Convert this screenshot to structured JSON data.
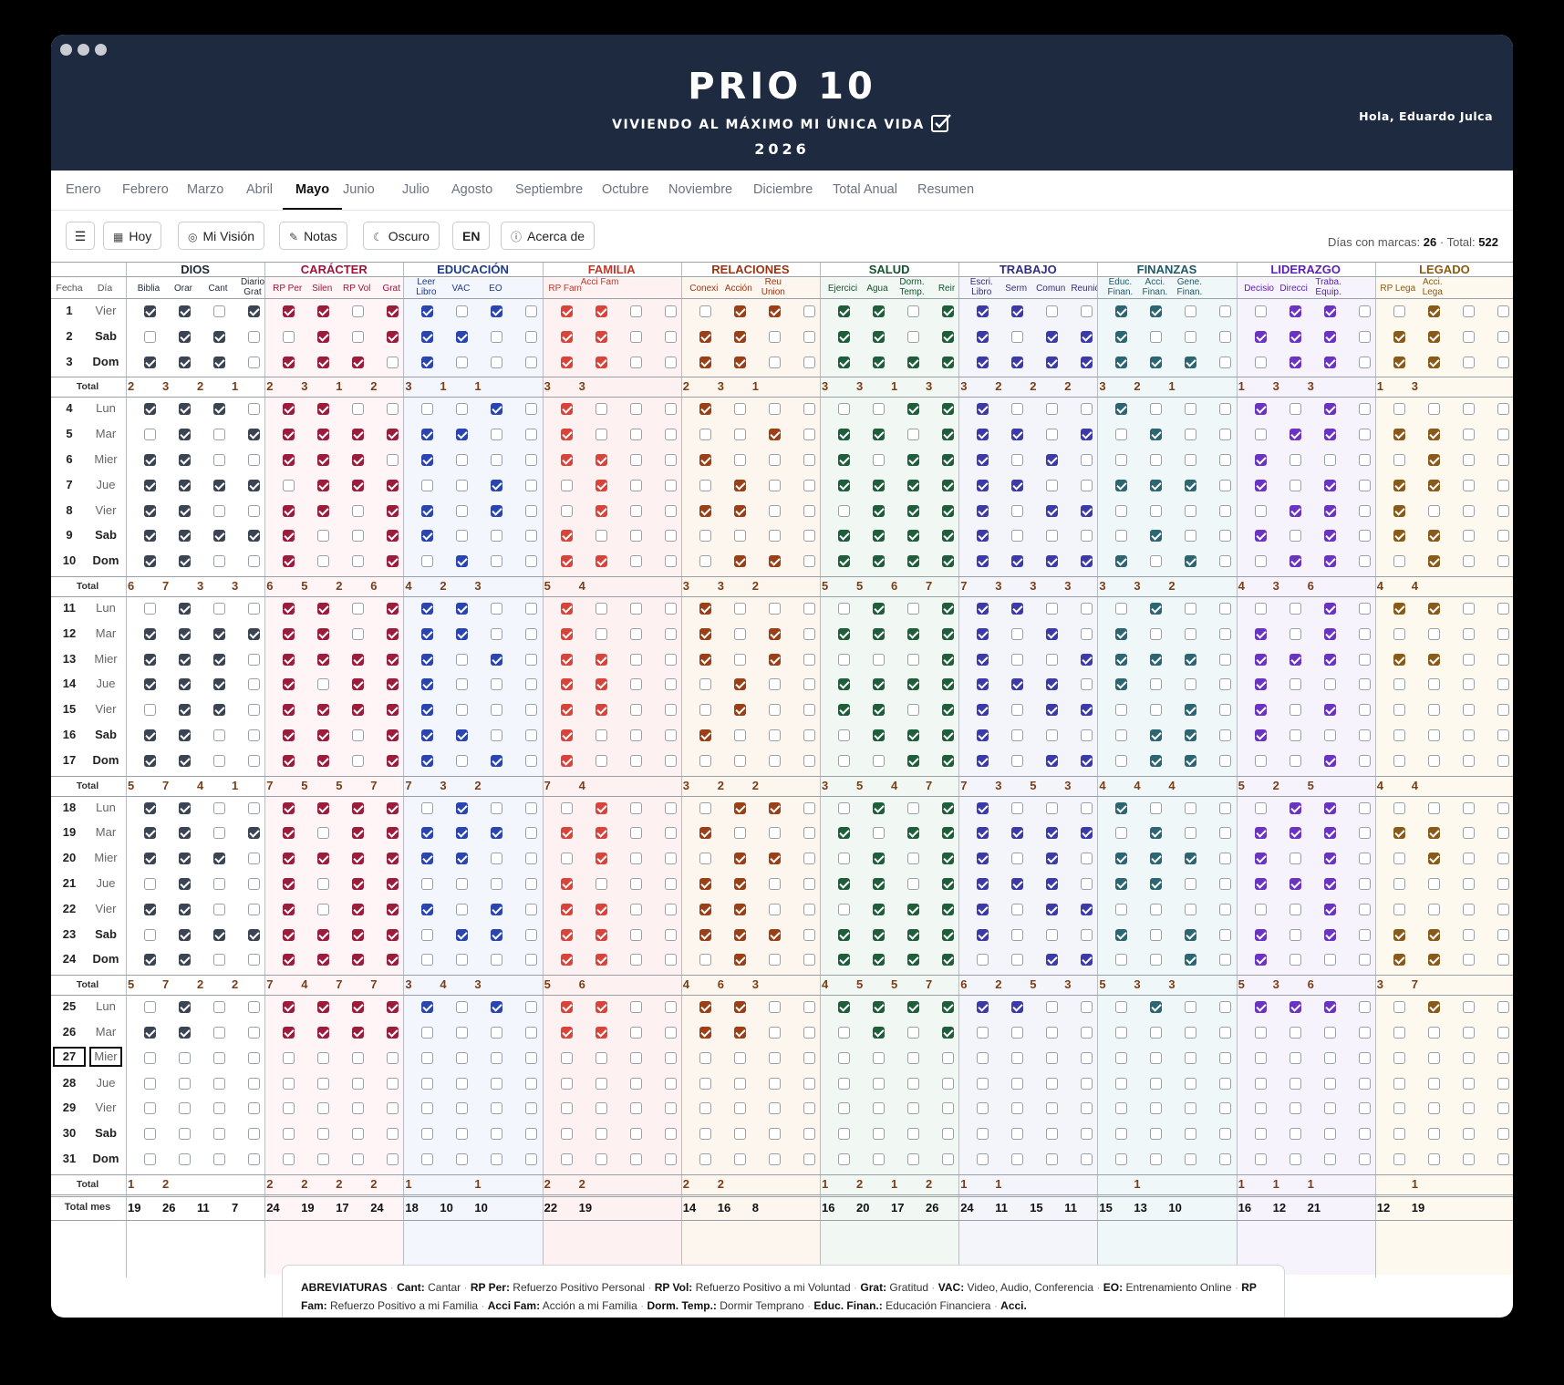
{
  "app": {
    "title": "PRIO 10",
    "subtitle": "VIVIENDO AL MÁXIMO MI ÚNICA VIDA",
    "year": "2026",
    "greeting": "Hola, Eduardo Julca"
  },
  "tabs": [
    "Enero",
    "Febrero",
    "Marzo",
    "Abril",
    "Mayo",
    "Junio",
    "Julio",
    "Agosto",
    "Septiembre",
    "Octubre",
    "Noviembre",
    "Diciembre",
    "Total Anual",
    "Resumen"
  ],
  "active_tab": "Mayo",
  "toolbar": {
    "menu_icon": "hamburger-icon",
    "today": "Hoy",
    "vision": "Mi Visión",
    "notes": "Notas",
    "dark": "Oscuro",
    "lang": "EN",
    "about": "Acerca de"
  },
  "stats": {
    "days_label": "Días con marcas:",
    "days": "26",
    "sep": "·",
    "total_label": "Total:",
    "total": "522"
  },
  "headers": {
    "fecha": "Fecha",
    "dia": "Día",
    "total": "Total",
    "month_total": "Total mes"
  },
  "groups": [
    {
      "name": "DIOS",
      "color": "#1f2937",
      "tint": "#ffffff",
      "cols": [
        "Biblia",
        "Orar",
        "Cant",
        "Diario Grat"
      ]
    },
    {
      "name": "CARÁCTER",
      "color": "#9f1239",
      "tint": "#fff5f7",
      "cols": [
        "RP Per",
        "Silen",
        "RP Vol",
        "Grat"
      ]
    },
    {
      "name": "EDUCACIÓN",
      "color": "#1e3a8a",
      "tint": "#f3f6fd",
      "cols": [
        "Leer Libro",
        "VAC",
        "EO",
        ""
      ]
    },
    {
      "name": "FAMILIA",
      "color": "#c0392b",
      "tint": "#fdf2f1",
      "cols": [
        "RP Fam",
        "Acci Fam",
        "",
        ""
      ]
    },
    {
      "name": "RELACIONES",
      "color": "#9a3412",
      "tint": "#fdf6ee",
      "cols": [
        "Conexi",
        "Acción",
        "Reu Union",
        ""
      ]
    },
    {
      "name": "SALUD",
      "color": "#14532d",
      "tint": "#f1f8f4",
      "cols": [
        "Ejercici",
        "Agua",
        "Dorm. Temp.",
        "Reir"
      ]
    },
    {
      "name": "TRABAJO",
      "color": "#312e81",
      "tint": "#f4f4fb",
      "cols": [
        "Escri. Libro",
        "Serm",
        "Comun",
        "Reunió"
      ]
    },
    {
      "name": "FINANZAS",
      "color": "#1e5a66",
      "tint": "#f0f7f8",
      "cols": [
        "Educ. Finan.",
        "Acci. Finan.",
        "Gene. Finan.",
        ""
      ]
    },
    {
      "name": "LIDERAZGO",
      "color": "#5b21b6",
      "tint": "#f7f3fd",
      "cols": [
        "Decisio",
        "Direcci",
        "Traba. Equip.",
        ""
      ]
    },
    {
      "name": "LEGADO",
      "color": "#8a5a12",
      "tint": "#fdf9ee",
      "cols": [
        "RP Lega",
        "Acci. Lega",
        "",
        ""
      ]
    }
  ],
  "group_colors": {
    "DIOS": "#3b4452",
    "CARÁCTER": "#9b1d3b",
    "EDUCACIÓN": "#2a45b0",
    "FAMILIA": "#d9443a",
    "RELACIONES": "#9a3f16",
    "SALUD": "#1f5e3a",
    "TRABAJO": "#3b3aa8",
    "FINANZAS": "#2b6672",
    "LIDERAZGO": "#6a33c2",
    "LEGADO": "#8a5a1a"
  },
  "weeks": [
    {
      "days": [
        {
          "n": "1",
          "d": "Vier",
          "m": "1101 1101 1010 1100 0110 1101 1100 1100 0110 0100"
        },
        {
          "n": "2",
          "d": "Sab",
          "m": "0110 0101 1100 1100 1100 1101 1011 1000 1110 1100"
        },
        {
          "n": "3",
          "d": "Dom",
          "m": "1110 1110 1000 1100 1100 1111 1111 1110 0110 1100"
        }
      ],
      "tot": [
        [
          "2",
          "3",
          "2",
          "1"
        ],
        [
          "2",
          "3",
          "1",
          "2"
        ],
        [
          "3",
          "1",
          "1",
          ""
        ],
        [
          "3",
          "3",
          "",
          ""
        ],
        [
          "2",
          "3",
          "1",
          ""
        ],
        [
          "3",
          "3",
          "1",
          "3"
        ],
        [
          "3",
          "2",
          "2",
          "2"
        ],
        [
          "3",
          "2",
          "1",
          ""
        ],
        [
          "1",
          "3",
          "3",
          ""
        ],
        [
          "1",
          "3",
          "",
          ""
        ]
      ]
    },
    {
      "days": [
        {
          "n": "4",
          "d": "Lun",
          "m": "1110 1100 0010 1000 1000 0011 1000 1000 1010 0000"
        },
        {
          "n": "5",
          "d": "Mar",
          "m": "0101 1111 1100 1000 0010 1101 1101 0100 0110 1100"
        },
        {
          "n": "6",
          "d": "Mier",
          "m": "1100 1110 1000 1100 1000 1011 1010 0000 1000 0100"
        },
        {
          "n": "7",
          "d": "Jue",
          "m": "1111 0111 0010 0100 0100 1111 1100 1110 1010 1100"
        },
        {
          "n": "8",
          "d": "Vier",
          "m": "1100 1101 1010 0100 1100 0111 1011 0000 0110 1000"
        },
        {
          "n": "9",
          "d": "Sab",
          "m": "1111 1001 1000 1000 0000 1111 1000 0100 1010 1100"
        },
        {
          "n": "10",
          "d": "Dom",
          "m": "1100 1001 0100 1100 0110 1111 1111 1010 0110 0100"
        }
      ],
      "tot": [
        [
          "6",
          "7",
          "3",
          "3"
        ],
        [
          "6",
          "5",
          "2",
          "6"
        ],
        [
          "4",
          "2",
          "3",
          ""
        ],
        [
          "5",
          "4",
          "",
          ""
        ],
        [
          "3",
          "3",
          "2",
          ""
        ],
        [
          "5",
          "5",
          "6",
          "7"
        ],
        [
          "7",
          "3",
          "3",
          "3"
        ],
        [
          "3",
          "3",
          "2",
          ""
        ],
        [
          "4",
          "3",
          "6",
          ""
        ],
        [
          "4",
          "4",
          "",
          ""
        ]
      ]
    },
    {
      "days": [
        {
          "n": "11",
          "d": "Lun",
          "m": "0100 1101 1100 1000 1000 0101 1100 0100 0010 1100"
        },
        {
          "n": "12",
          "d": "Mar",
          "m": "1111 1101 1100 1000 1010 1111 1010 1000 1010 0000"
        },
        {
          "n": "13",
          "d": "Mier",
          "m": "1110 1111 1010 1100 1010 0001 1001 1110 1110 1100"
        },
        {
          "n": "14",
          "d": "Jue",
          "m": "1110 1011 1000 1100 0100 1111 1110 1000 1000 0000"
        },
        {
          "n": "15",
          "d": "Vier",
          "m": "0110 1111 1000 1100 0100 1101 1011 0010 1010 0000"
        },
        {
          "n": "16",
          "d": "Sab",
          "m": "1100 1101 1100 1000 1000 0111 1000 0110 1000 0000"
        },
        {
          "n": "17",
          "d": "Dom",
          "m": "1100 1101 1010 1000 0000 0011 1011 0110 0010 0000"
        }
      ],
      "tot": [
        [
          "5",
          "7",
          "4",
          "1"
        ],
        [
          "7",
          "5",
          "5",
          "7"
        ],
        [
          "7",
          "3",
          "2",
          ""
        ],
        [
          "7",
          "4",
          "",
          ""
        ],
        [
          "3",
          "2",
          "2",
          ""
        ],
        [
          "3",
          "5",
          "4",
          "7"
        ],
        [
          "7",
          "3",
          "5",
          "3"
        ],
        [
          "4",
          "4",
          "4",
          ""
        ],
        [
          "5",
          "2",
          "5",
          ""
        ],
        [
          "4",
          "4",
          "",
          ""
        ]
      ]
    },
    {
      "days": [
        {
          "n": "18",
          "d": "Lun",
          "m": "1100 1111 0100 0100 0110 0101 1000 1000 0110 0000"
        },
        {
          "n": "19",
          "d": "Mar",
          "m": "1101 1011 1110 1100 1000 1011 1111 0100 1110 1100"
        },
        {
          "n": "20",
          "d": "Mier",
          "m": "1110 1111 1100 0100 0110 0101 1010 1110 1010 0100"
        },
        {
          "n": "21",
          "d": "Jue",
          "m": "0100 1011 0000 1000 1100 1101 1110 1100 1110 0000"
        },
        {
          "n": "22",
          "d": "Vier",
          "m": "1100 1011 1010 1100 1100 0111 1011 0000 0010 0000"
        },
        {
          "n": "23",
          "d": "Sab",
          "m": "0111 1111 0110 1100 1110 1111 1000 1010 1010 1100"
        },
        {
          "n": "24",
          "d": "Dom",
          "m": "1100 1111 0000 1100 0100 1111 0011 0010 1000 1100"
        }
      ],
      "tot": [
        [
          "5",
          "7",
          "2",
          "2"
        ],
        [
          "7",
          "4",
          "7",
          "7"
        ],
        [
          "3",
          "4",
          "3",
          ""
        ],
        [
          "5",
          "6",
          "",
          ""
        ],
        [
          "4",
          "6",
          "3",
          ""
        ],
        [
          "4",
          "5",
          "5",
          "7"
        ],
        [
          "6",
          "2",
          "5",
          "3"
        ],
        [
          "5",
          "3",
          "3",
          ""
        ],
        [
          "5",
          "3",
          "6",
          ""
        ],
        [
          "3",
          "7",
          "",
          ""
        ]
      ]
    },
    {
      "days": [
        {
          "n": "25",
          "d": "Lun",
          "m": "0100 1111 1010 1100 1100 1111 1100 0100 1110 0100"
        },
        {
          "n": "26",
          "d": "Mar",
          "m": "1100 1111 0000 1100 1100 0101 0000 0000 0000 0000"
        },
        {
          "n": "27",
          "d": "Mier",
          "m": "0000 0000 0000 0000 0000 0000 0000 0000 0000 0000"
        },
        {
          "n": "28",
          "d": "Jue",
          "m": "0000 0000 0000 0000 0000 0000 0000 0000 0000 0000"
        },
        {
          "n": "29",
          "d": "Vier",
          "m": "0000 0000 0000 0000 0000 0000 0000 0000 0000 0000"
        },
        {
          "n": "30",
          "d": "Sab",
          "m": "0000 0000 0000 0000 0000 0000 0000 0000 0000 0000"
        },
        {
          "n": "31",
          "d": "Dom",
          "m": "0000 0000 0000 0000 0000 0000 0000 0000 0000 0000"
        }
      ],
      "tot": [
        [
          "1",
          "2",
          "",
          ""
        ],
        [
          "2",
          "2",
          "2",
          "2"
        ],
        [
          "1",
          "",
          "1",
          ""
        ],
        [
          "2",
          "2",
          "",
          ""
        ],
        [
          "2",
          "2",
          "",
          ""
        ],
        [
          "1",
          "2",
          "1",
          "2"
        ],
        [
          "1",
          "1",
          "",
          ""
        ],
        [
          "",
          "1",
          "",
          ""
        ],
        [
          "1",
          "1",
          "1",
          ""
        ],
        [
          "",
          "1",
          "",
          ""
        ]
      ]
    }
  ],
  "month_totals": [
    [
      "19",
      "26",
      "11",
      "7"
    ],
    [
      "24",
      "19",
      "17",
      "24"
    ],
    [
      "18",
      "10",
      "10",
      ""
    ],
    [
      "22",
      "19",
      "",
      ""
    ],
    [
      "14",
      "16",
      "8",
      ""
    ],
    [
      "16",
      "20",
      "17",
      "26"
    ],
    [
      "24",
      "11",
      "15",
      "11"
    ],
    [
      "15",
      "13",
      "10",
      ""
    ],
    [
      "16",
      "12",
      "21",
      ""
    ],
    [
      "12",
      "19",
      "",
      ""
    ]
  ],
  "footer": [
    {
      "k": "ABREVIATURAS",
      "v": ""
    },
    {
      "k": "Cant:",
      "v": "Cantar"
    },
    {
      "k": "RP Per:",
      "v": "Refuerzo Positivo Personal"
    },
    {
      "k": "RP Vol:",
      "v": "Refuerzo Positivo a mi Voluntad"
    },
    {
      "k": "Grat:",
      "v": "Gratitud"
    },
    {
      "k": "VAC:",
      "v": "Video, Audio, Conferencia"
    },
    {
      "k": "EO:",
      "v": "Entrenamiento Online"
    },
    {
      "k": "RP Fam:",
      "v": "Refuerzo Positivo a mi Familia"
    },
    {
      "k": "Acci Fam:",
      "v": "Acción a mi Familia"
    },
    {
      "k": "Dorm. Temp.:",
      "v": "Dormir Temprano"
    },
    {
      "k": "Educ. Finan.:",
      "v": "Educación Financiera"
    },
    {
      "k": "Acci.",
      "v": ""
    }
  ]
}
